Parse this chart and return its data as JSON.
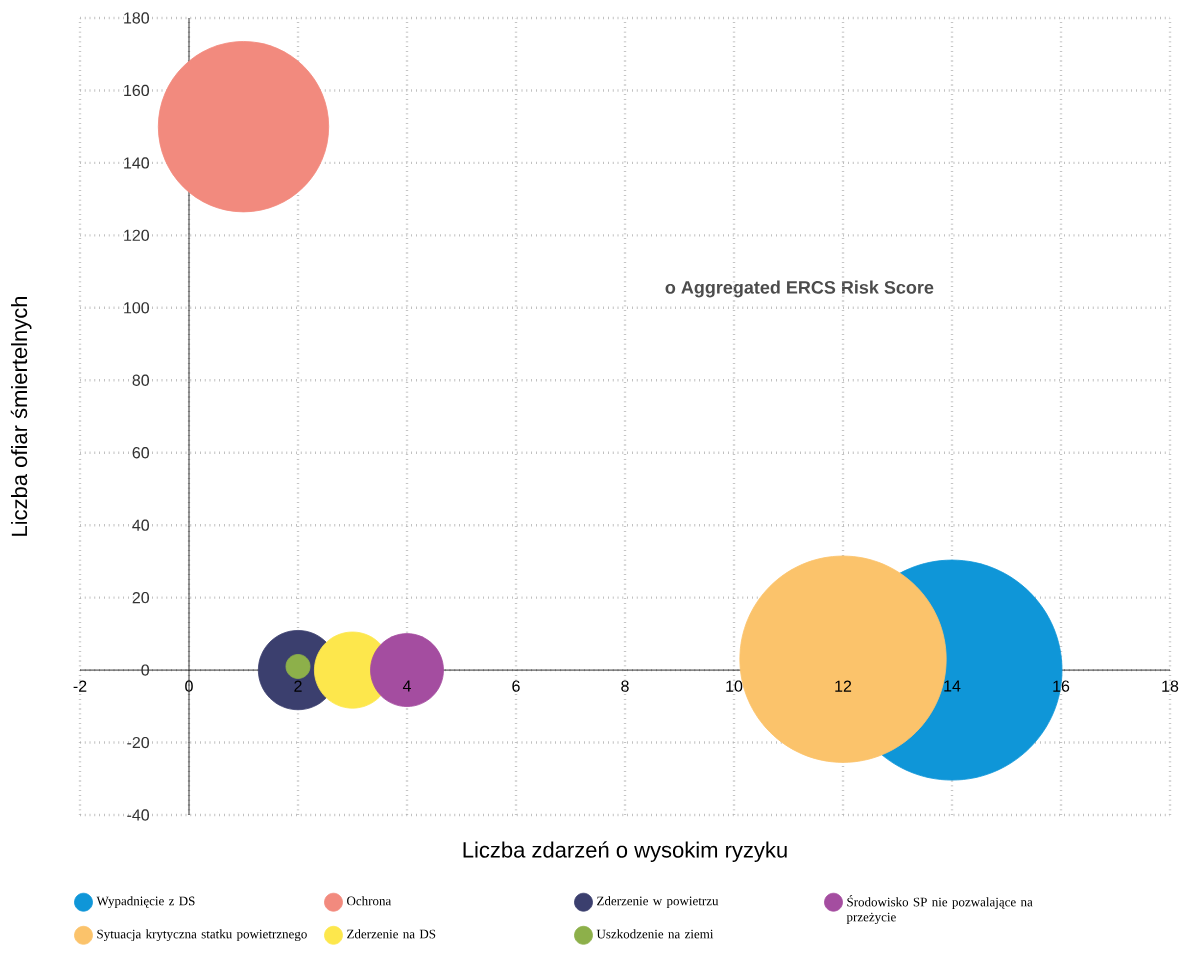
{
  "chart_data": {
    "type": "bubble",
    "xlabel": "Liczba zdarzeń o wysokim ryzyku",
    "ylabel": "Liczba ofiar śmiertelnych",
    "annotations": [
      "o  Aggregated ERCS Risk Score"
    ],
    "xlim": [
      -2,
      18
    ],
    "ylim": [
      -40,
      180
    ],
    "xticks": [
      -2,
      0,
      2,
      4,
      6,
      8,
      10,
      12,
      14,
      16,
      18
    ],
    "yticks": [
      -40,
      -20,
      0,
      20,
      40,
      60,
      80,
      100,
      120,
      140,
      160,
      180
    ],
    "grid": true,
    "legend": "bottom",
    "series": [
      {
        "name": "Wypadnięcie z DS",
        "color": "#0f96d8",
        "x": [
          14
        ],
        "values": [
          0
        ],
        "sizes": [
          1
        ]
      },
      {
        "name": "Ochrona",
        "color": "#f28a7e",
        "x": [
          1
        ],
        "values": [
          150
        ],
        "sizes": [
          0.6
        ]
      },
      {
        "name": "Zderzenie w powietrzu",
        "color": "#3b3f6e",
        "x": [
          2
        ],
        "values": [
          0
        ],
        "sizes": [
          0.13
        ]
      },
      {
        "name": "Środowisko SP nie pozwalające na przeżycie",
        "color": "#a44da0",
        "x": [
          4
        ],
        "values": [
          0
        ],
        "sizes": [
          0.11
        ]
      },
      {
        "name": "Sytuacja krytyczna statku powietrznego",
        "color": "#fbc36b",
        "x": [
          12
        ],
        "values": [
          3
        ],
        "sizes": [
          0.88
        ]
      },
      {
        "name": "Zderzenie na DS",
        "color": "#fde74c",
        "x": [
          3
        ],
        "values": [
          0
        ],
        "sizes": [
          0.12
        ]
      },
      {
        "name": "Uszkodzenie na ziemi",
        "color": "#8db04a",
        "x": [
          2
        ],
        "values": [
          1
        ],
        "sizes": [
          0.012
        ]
      }
    ]
  }
}
